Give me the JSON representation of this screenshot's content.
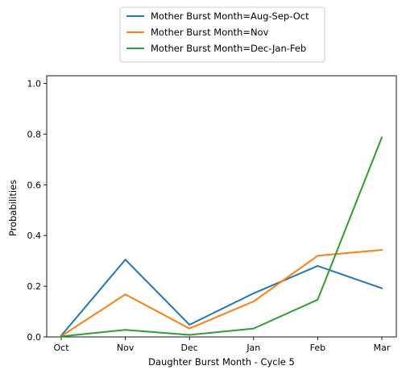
{
  "chart_data": {
    "type": "line",
    "title": "",
    "xlabel": "Daughter Burst Month - Cycle 5",
    "ylabel": "Probabilities",
    "categories": [
      "Oct",
      "Nov",
      "Dec",
      "Jan",
      "Feb",
      "Mar"
    ],
    "ylim": [
      0,
      1.03
    ],
    "yticks": [
      0.0,
      0.2,
      0.4,
      0.6,
      0.8,
      1.0
    ],
    "ytick_labels": [
      "0.0",
      "0.2",
      "0.4",
      "0.6",
      "0.8",
      "1.0"
    ],
    "grid": false,
    "legend_position": "top-center-outside",
    "series": [
      {
        "name": "Mother Burst Month=Aug-Sep-Oct",
        "color": "#1f77b4",
        "values": [
          0.005,
          0.305,
          0.048,
          0.172,
          0.28,
          0.192
        ]
      },
      {
        "name": "Mother Burst Month=Nov",
        "color": "#ff7f0e",
        "values": [
          0.003,
          0.168,
          0.033,
          0.14,
          0.32,
          0.343
        ]
      },
      {
        "name": "Mother Burst Month=Dec-Jan-Feb",
        "color": "#2ca02c",
        "values": [
          0.002,
          0.028,
          0.008,
          0.033,
          0.147,
          0.787
        ]
      }
    ]
  }
}
